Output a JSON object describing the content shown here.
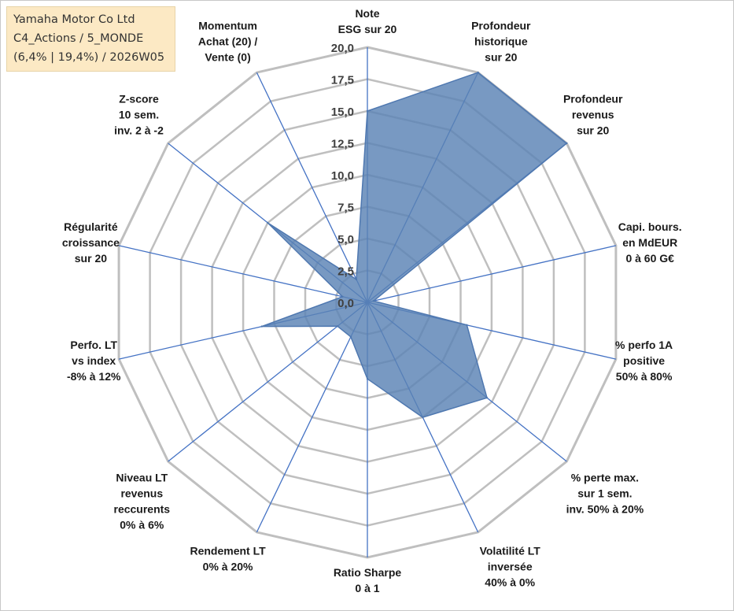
{
  "title": {
    "line1": "Yamaha Motor Co Ltd",
    "line2": "C4_Actions / 5_MONDE",
    "line3": "(6,4% | 19,4%) / 2026W05"
  },
  "colors": {
    "grid": "#bfbfbf",
    "spoke": "#4472c4",
    "fill": "#5a82b4",
    "stroke": "#4f78b0",
    "title_bg": "#fce9c4"
  },
  "chart_data": {
    "type": "radar",
    "rmin": 0,
    "rmax": 20,
    "ticks": [
      "0,0",
      "2,5",
      "5,0",
      "7,5",
      "10,0",
      "12,5",
      "15,0",
      "17,5",
      "20,0"
    ],
    "grid": true,
    "axes": [
      {
        "label": [
          "Note",
          "ESG sur 20"
        ],
        "value": 15.0
      },
      {
        "label": [
          "Profondeur",
          "historique",
          "sur 20"
        ],
        "value": 20.0
      },
      {
        "label": [
          "Profondeur",
          "revenus",
          "sur 20"
        ],
        "value": 20.0
      },
      {
        "label": [
          "Capi. bours.",
          "en MdEUR",
          "0 à 60 G€"
        ],
        "value": 0.5
      },
      {
        "label": [
          "% perfo 1A",
          "positive",
          "50% à 80%"
        ],
        "value": 8.0
      },
      {
        "label": [
          "% perte max.",
          "sur 1 sem.",
          "inv. 50% à 20%"
        ],
        "value": 12.0
      },
      {
        "label": [
          "Volatilité LT",
          "inversée",
          "40% à 0%"
        ],
        "value": 10.0
      },
      {
        "label": [
          "Ratio Sharpe",
          "0 à 1"
        ],
        "value": 6.0
      },
      {
        "label": [
          "Rendement LT",
          "0% à 20%"
        ],
        "value": 3.0
      },
      {
        "label": [
          "Niveau LT",
          "revenus",
          "reccurents",
          "0% à 6%"
        ],
        "value": 3.0
      },
      {
        "label": [
          "Perfo. LT",
          "vs index",
          "-8% à 12%"
        ],
        "value": 8.5
      },
      {
        "label": [
          "Régularité",
          "croissance",
          "sur 20"
        ],
        "value": 2.0
      },
      {
        "label": [
          "Z-score",
          "10 sem.",
          "inv. 2 à -2"
        ],
        "value": 10.0
      },
      {
        "label": [
          "Momentum",
          "Achat (20) /",
          "Vente (0)"
        ],
        "value": 2.0
      }
    ]
  }
}
